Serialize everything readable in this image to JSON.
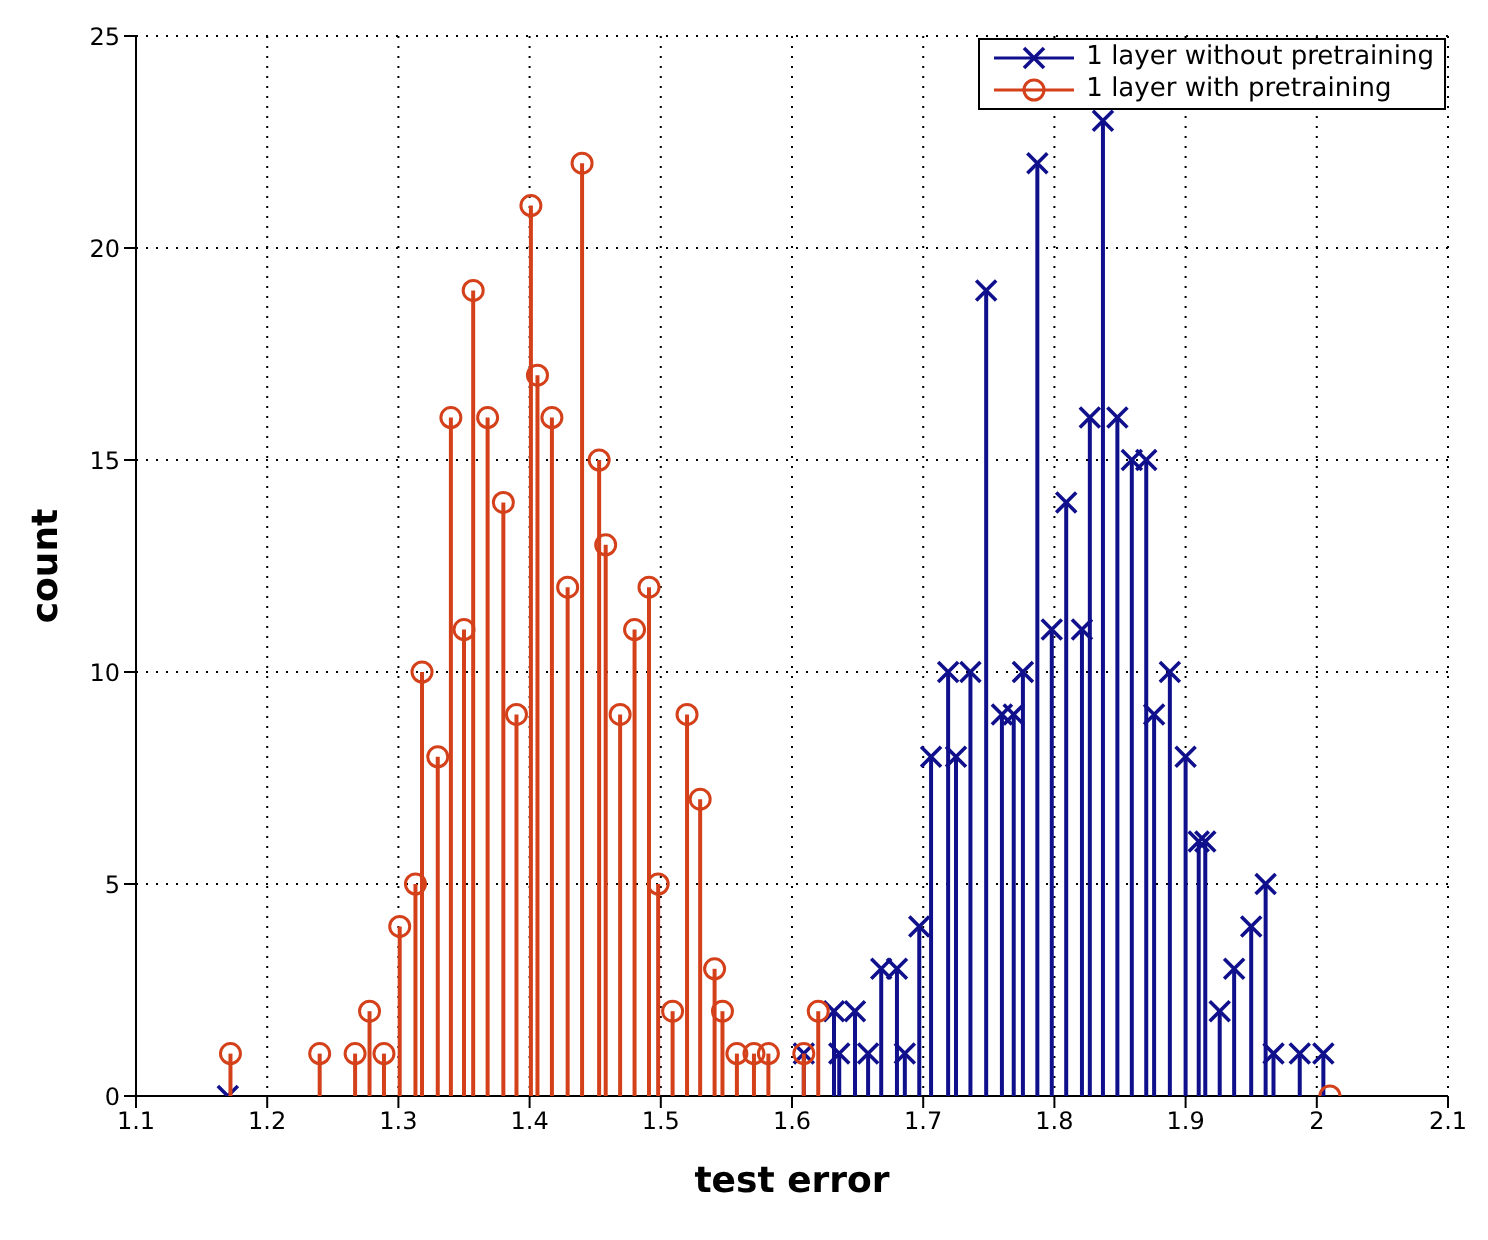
{
  "chart_data": {
    "type": "lollipop",
    "xlabel": "test error",
    "ylabel": "count",
    "xlim": [
      1.1,
      2.1
    ],
    "xticks": [
      1.1,
      1.2,
      1.3,
      1.4,
      1.5,
      1.6,
      1.7,
      1.8,
      1.9,
      2,
      2.1
    ],
    "ylim": [
      0,
      25
    ],
    "yticks": [
      0,
      5,
      10,
      15,
      20,
      25
    ],
    "grid": true,
    "legend": "top right",
    "series": [
      {
        "name": "1 layer without pretraining",
        "color": "#10108c",
        "marker": "cross",
        "x": [
          1.17,
          1.609,
          1.632,
          1.636,
          1.648,
          1.658,
          1.668,
          1.68,
          1.686,
          1.697,
          1.706,
          1.719,
          1.725,
          1.736,
          1.748,
          1.76,
          1.769,
          1.776,
          1.787,
          1.798,
          1.809,
          1.821,
          1.827,
          1.837,
          1.848,
          1.859,
          1.87,
          1.876,
          1.888,
          1.9,
          1.91,
          1.915,
          1.926,
          1.937,
          1.95,
          1.961,
          1.967,
          1.987,
          2.005
        ],
        "values": [
          0,
          1,
          2,
          1,
          2,
          1,
          3,
          3,
          1,
          4,
          8,
          10,
          8,
          10,
          19,
          9,
          9,
          10,
          22,
          11,
          14,
          11,
          16,
          23,
          16,
          15,
          15,
          9,
          10,
          8,
          6,
          6,
          2,
          3,
          4,
          5,
          1,
          1,
          1
        ]
      },
      {
        "name": "1 layer with pretraining",
        "color": "#d4401a",
        "marker": "circle",
        "x": [
          1.172,
          1.24,
          1.267,
          1.278,
          1.289,
          1.301,
          1.313,
          1.318,
          1.33,
          1.34,
          1.35,
          1.357,
          1.368,
          1.38,
          1.39,
          1.401,
          1.406,
          1.417,
          1.429,
          1.44,
          1.453,
          1.458,
          1.469,
          1.48,
          1.491,
          1.498,
          1.509,
          1.52,
          1.53,
          1.541,
          1.547,
          1.558,
          1.571,
          1.582,
          1.609,
          1.62,
          2.01
        ],
        "values": [
          1,
          1,
          1,
          2,
          1,
          4,
          5,
          10,
          8,
          16,
          11,
          19,
          16,
          14,
          9,
          21,
          17,
          16,
          12,
          22,
          15,
          13,
          9,
          11,
          12,
          5,
          2,
          9,
          7,
          3,
          2,
          1,
          1,
          1,
          1,
          2,
          0
        ]
      }
    ]
  }
}
